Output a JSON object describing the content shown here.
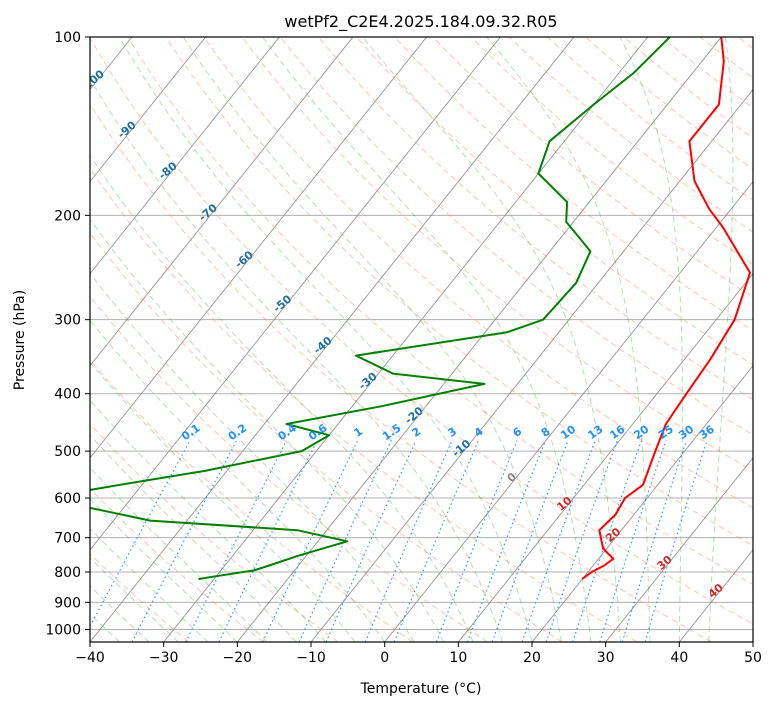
{
  "chart_data": {
    "type": "line",
    "title": "wetPf2_C2E4.2025.184.09.32.R05",
    "xlabel": "Temperature (°C)",
    "ylabel": "Pressure (hPa)",
    "xlim": [
      -40,
      50
    ],
    "ylim": [
      1050,
      100
    ],
    "y_scale": "log",
    "x_ticks": [
      -40,
      -30,
      -20,
      -10,
      0,
      10,
      20,
      30,
      40,
      50
    ],
    "y_ticks": [
      100,
      200,
      300,
      400,
      500,
      600,
      700,
      800,
      900,
      1000
    ],
    "grid": true,
    "skew": true,
    "series": [
      {
        "color": "#ff0000",
        "points": [
          [
            20.0,
            820
          ],
          [
            20.5,
            800
          ],
          [
            21.5,
            780
          ],
          [
            22.0,
            760
          ],
          [
            19.5,
            730
          ],
          [
            17.0,
            680
          ],
          [
            17.5,
            640
          ],
          [
            17.0,
            600
          ],
          [
            18.0,
            570
          ],
          [
            16.0,
            500
          ],
          [
            14.5,
            450
          ],
          [
            14.0,
            400
          ],
          [
            13.5,
            350
          ],
          [
            12.5,
            300
          ],
          [
            9.5,
            250
          ],
          [
            1.0,
            210
          ],
          [
            -3.0,
            195
          ],
          [
            -8.0,
            175
          ],
          [
            -13.0,
            150
          ],
          [
            -13.0,
            130
          ],
          [
            -17.0,
            110
          ],
          [
            -20.0,
            100
          ]
        ]
      },
      {
        "color": "#008000",
        "points": [
          [
            -32.0,
            822
          ],
          [
            -30.5,
            815
          ],
          [
            -25.5,
            795
          ],
          [
            -24.0,
            780
          ],
          [
            -21.0,
            750
          ],
          [
            -16.0,
            710
          ],
          [
            -24.0,
            680
          ],
          [
            -45.0,
            655
          ],
          [
            -62.0,
            600
          ],
          [
            -53.0,
            570
          ],
          [
            -43.0,
            540
          ],
          [
            -32.0,
            500
          ],
          [
            -30.0,
            470
          ],
          [
            -37.0,
            450
          ],
          [
            -26.0,
            420
          ],
          [
            -14.5,
            385
          ],
          [
            -28.0,
            370
          ],
          [
            -35.0,
            345
          ],
          [
            -17.0,
            315
          ],
          [
            -13.5,
            300
          ],
          [
            -13.0,
            260
          ],
          [
            -14.5,
            230
          ],
          [
            -21.0,
            205
          ],
          [
            -23.0,
            190
          ],
          [
            -30.0,
            170
          ],
          [
            -32.0,
            150
          ],
          [
            -30.0,
            130
          ],
          [
            -28.0,
            115
          ],
          [
            -27.0,
            100
          ]
        ]
      }
    ],
    "dry_adiabat_labels": [
      "-100",
      "-90",
      "-80",
      "-70",
      "-60",
      "-50",
      "-40",
      "-30",
      "-20",
      "-10",
      "0"
    ],
    "moist_adiabat_labels": [
      "10",
      "20",
      "30",
      "40"
    ],
    "mixing_ratio_labels": [
      "0.1",
      "0.2",
      "0.4",
      "0.6",
      "1",
      "1.5",
      "2",
      "3",
      "4",
      "6",
      "8",
      "10",
      "13",
      "16",
      "20",
      "25",
      "30",
      "36"
    ],
    "colors": {
      "temperature": "#ff0000",
      "dewpoint": "#008000",
      "isotherm": "#888888",
      "dry_adiabat": "#ff7f50",
      "moist_adiabat": "#2ca02c",
      "mixing_ratio": "#1e90ff",
      "grid": "#b0b0b0"
    }
  }
}
